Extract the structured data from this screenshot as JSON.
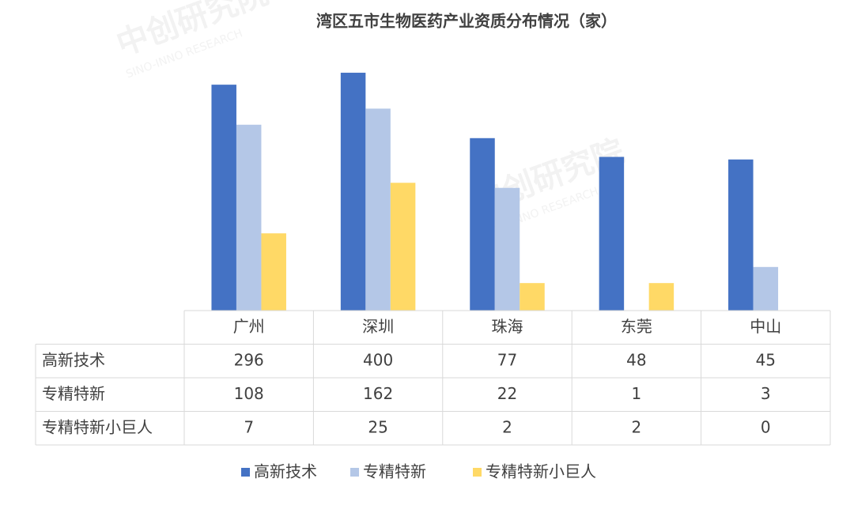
{
  "chart_data": {
    "type": "bar",
    "title": "湾区五市生物医药产业资质分布情况（家）",
    "categories": [
      "广州",
      "深圳",
      "珠海",
      "东莞",
      "中山"
    ],
    "series": [
      {
        "name": "高新技术",
        "color": "#4472c4",
        "values": [
          296,
          400,
          77,
          48,
          45
        ]
      },
      {
        "name": "专精特新",
        "color": "#b4c7e7",
        "values": [
          108,
          162,
          22,
          1,
          3
        ]
      },
      {
        "name": "专精特新小巨人",
        "color": "#ffd966",
        "values": [
          7,
          25,
          2,
          2,
          0
        ]
      }
    ],
    "ylim": [
      1,
      1000
    ],
    "log_scale": true,
    "data_table": true,
    "legend": "bottom"
  },
  "watermark": {
    "name": "中创研究院",
    "subtitle": "SINO-INNO RESEARCH"
  }
}
